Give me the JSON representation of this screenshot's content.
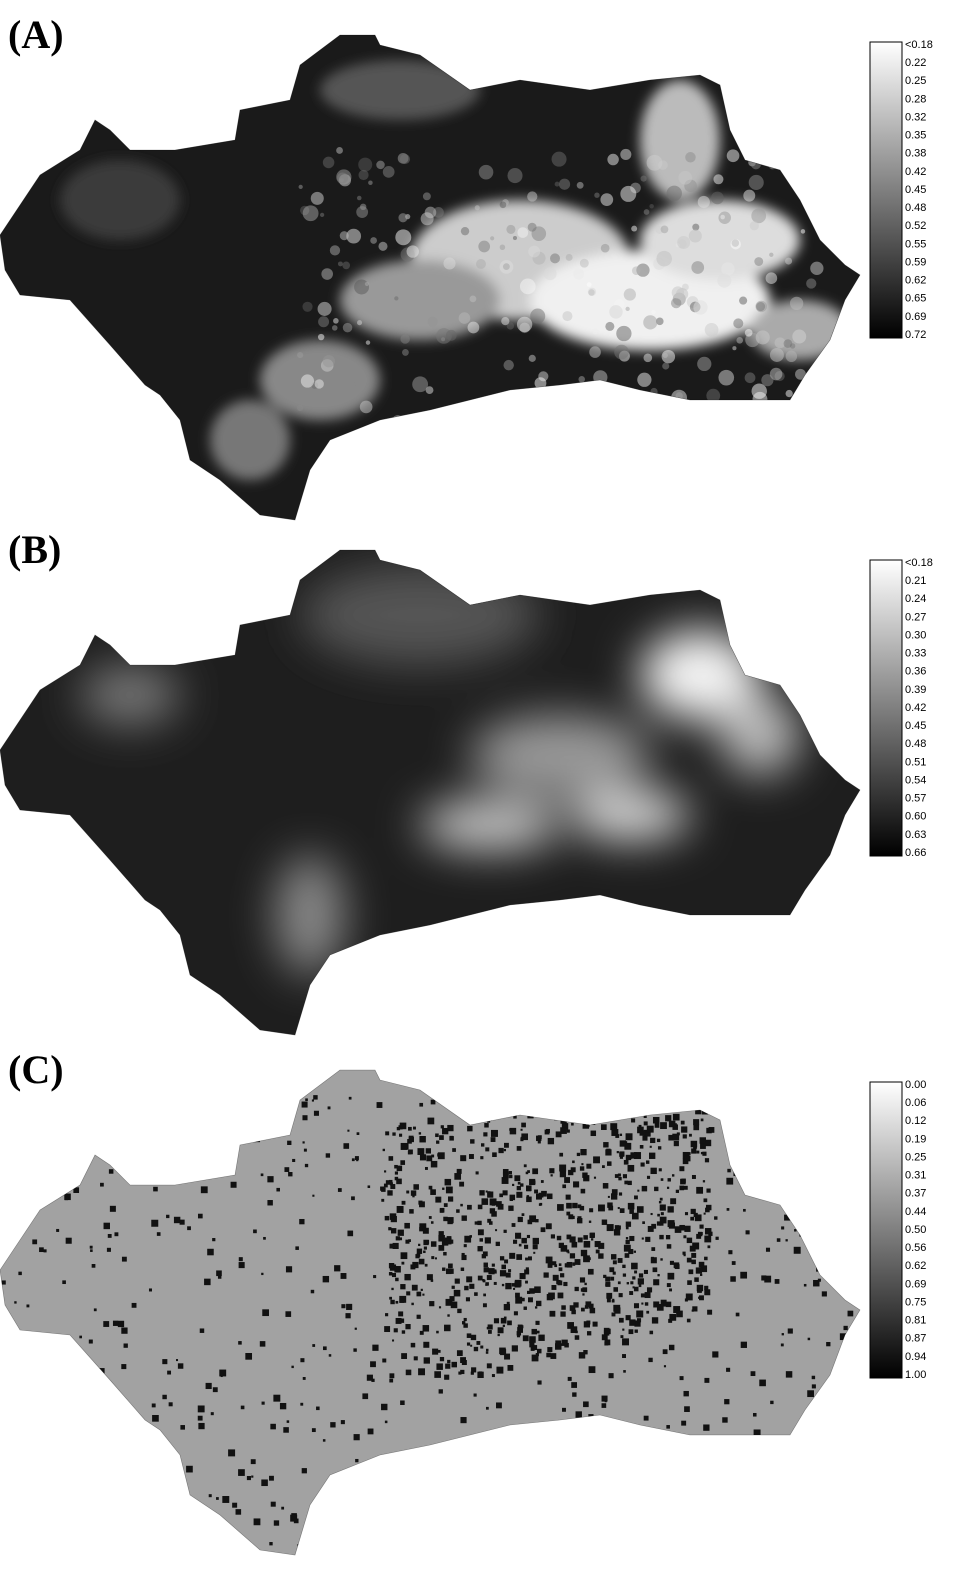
{
  "panels": [
    {
      "label": "(A)",
      "legend": [
        "<0.18",
        "0.22",
        "0.25",
        "0.28",
        "0.32",
        "0.35",
        "0.38",
        "0.42",
        "0.45",
        "0.48",
        "0.52",
        "0.55",
        "0.59",
        "0.62",
        "0.65",
        "0.69",
        "0.72"
      ]
    },
    {
      "label": "(B)",
      "legend": [
        "<0.18",
        "0.21",
        "0.24",
        "0.27",
        "0.30",
        "0.33",
        "0.36",
        "0.39",
        "0.42",
        "0.45",
        "0.48",
        "0.51",
        "0.54",
        "0.57",
        "0.60",
        "0.63",
        "0.66"
      ]
    },
    {
      "label": "(C)",
      "legend": [
        "0.00",
        "0.06",
        "0.12",
        "0.19",
        "0.25",
        "0.31",
        "0.37",
        "0.44",
        "0.50",
        "0.56",
        "0.62",
        "0.69",
        "0.75",
        "0.81",
        "0.87",
        "0.94",
        "1.00"
      ]
    }
  ]
}
